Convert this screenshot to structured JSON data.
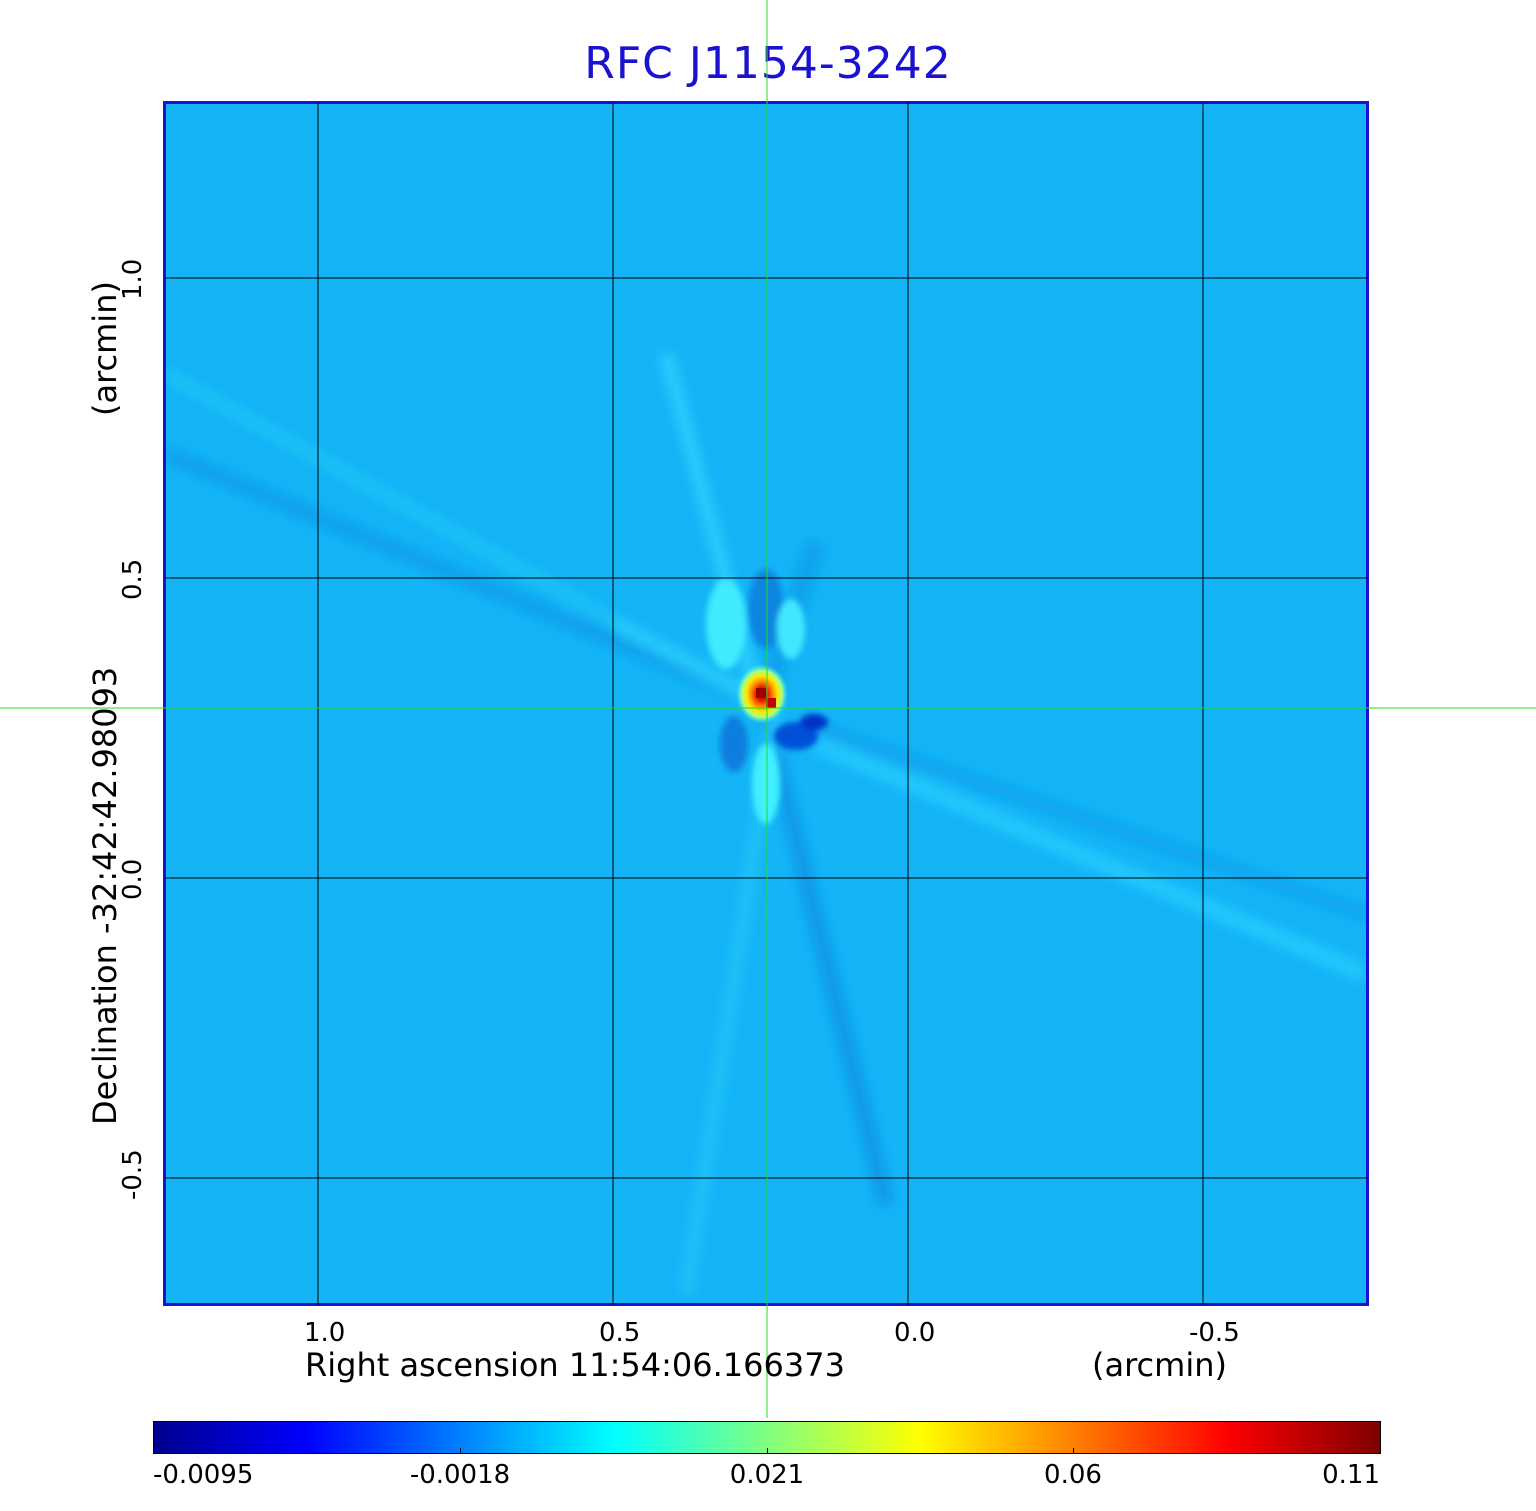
{
  "title": "RFC J1154-3242",
  "y_axis": {
    "label": "Declination  -32:42:42.98093",
    "unit": "(arcmin)",
    "ticks": [
      "1.0",
      "0.5",
      "0.0",
      "-0.5"
    ],
    "tick_values": [
      1.0,
      0.5,
      0.0,
      -0.5
    ]
  },
  "x_axis": {
    "label": "Right ascension  11:54:06.166373",
    "unit": "(arcmin)",
    "ticks": [
      "1.0",
      "0.5",
      "0.0",
      "-0.5"
    ],
    "tick_values": [
      1.0,
      0.5,
      0.0,
      -0.5
    ]
  },
  "colorbar": {
    "colormap": "jet",
    "ticks": [
      "-0.0095",
      "-0.0018",
      "0.021",
      "0.06",
      "0.11"
    ]
  },
  "colors": {
    "title": "#1a12d0",
    "frame": "#1a12d0",
    "crosshair": "#22dd22",
    "grid": "#000000",
    "background_map": "#14b4f6"
  },
  "source": {
    "ra_offset_arcmin": 0.24,
    "dec_offset_arcmin": 0.28,
    "peak_value": 0.11
  }
}
